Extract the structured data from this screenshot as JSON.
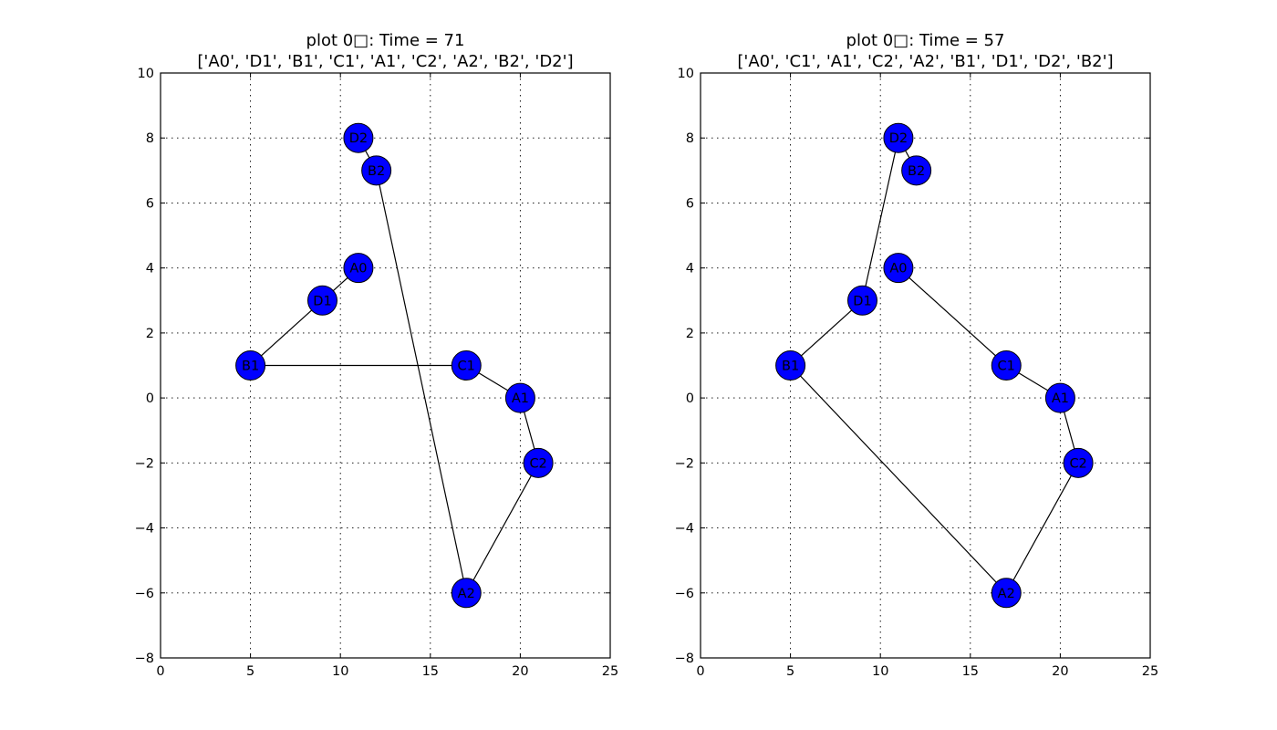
{
  "chart_data": [
    {
      "type": "scatter",
      "title": "plot 0□: Time = 71",
      "subtitle": "['A0', 'D1', 'B1', 'C1', 'A1', 'C2', 'A2', 'B2', 'D2']",
      "xlabel": "",
      "ylabel": "",
      "xlim": [
        0,
        25
      ],
      "ylim": [
        -8,
        10
      ],
      "xticks": [
        0,
        5,
        10,
        15,
        20,
        25
      ],
      "yticks": [
        -8,
        -6,
        -4,
        -2,
        0,
        2,
        4,
        6,
        8,
        10
      ],
      "xtick_labels": [
        "0",
        "5",
        "10",
        "15",
        "20",
        "25"
      ],
      "ytick_labels": [
        "−8",
        "−6",
        "−4",
        "−2",
        "0",
        "2",
        "4",
        "6",
        "8",
        "10"
      ],
      "grid": true,
      "points": [
        {
          "label": "A0",
          "x": 11,
          "y": 4
        },
        {
          "label": "D1",
          "x": 9,
          "y": 3
        },
        {
          "label": "B1",
          "x": 5,
          "y": 1
        },
        {
          "label": "C1",
          "x": 17,
          "y": 1
        },
        {
          "label": "A1",
          "x": 20,
          "y": 0
        },
        {
          "label": "C2",
          "x": 21,
          "y": -2
        },
        {
          "label": "A2",
          "x": 17,
          "y": -6
        },
        {
          "label": "B2",
          "x": 12,
          "y": 7
        },
        {
          "label": "D2",
          "x": 11,
          "y": 8
        }
      ],
      "path_order": [
        "A0",
        "D1",
        "B1",
        "C1",
        "A1",
        "C2",
        "A2",
        "B2",
        "D2"
      ],
      "node_color": "#0000ff",
      "line_color": "#000000"
    },
    {
      "type": "scatter",
      "title": "plot 0□: Time = 57",
      "subtitle": "['A0', 'C1', 'A1', 'C2', 'A2', 'B1', 'D1', 'D2', 'B2']",
      "xlabel": "",
      "ylabel": "",
      "xlim": [
        0,
        25
      ],
      "ylim": [
        -8,
        10
      ],
      "xticks": [
        0,
        5,
        10,
        15,
        20,
        25
      ],
      "yticks": [
        -8,
        -6,
        -4,
        -2,
        0,
        2,
        4,
        6,
        8,
        10
      ],
      "xtick_labels": [
        "0",
        "5",
        "10",
        "15",
        "20",
        "25"
      ],
      "ytick_labels": [
        "−8",
        "−6",
        "−4",
        "−2",
        "0",
        "2",
        "4",
        "6",
        "8",
        "10"
      ],
      "grid": true,
      "points": [
        {
          "label": "A0",
          "x": 11,
          "y": 4
        },
        {
          "label": "D1",
          "x": 9,
          "y": 3
        },
        {
          "label": "B1",
          "x": 5,
          "y": 1
        },
        {
          "label": "C1",
          "x": 17,
          "y": 1
        },
        {
          "label": "A1",
          "x": 20,
          "y": 0
        },
        {
          "label": "C2",
          "x": 21,
          "y": -2
        },
        {
          "label": "A2",
          "x": 17,
          "y": -6
        },
        {
          "label": "B2",
          "x": 12,
          "y": 7
        },
        {
          "label": "D2",
          "x": 11,
          "y": 8
        }
      ],
      "path_order": [
        "A0",
        "C1",
        "A1",
        "C2",
        "A2",
        "B1",
        "D1",
        "D2",
        "B2"
      ],
      "node_color": "#0000ff",
      "line_color": "#000000"
    }
  ]
}
